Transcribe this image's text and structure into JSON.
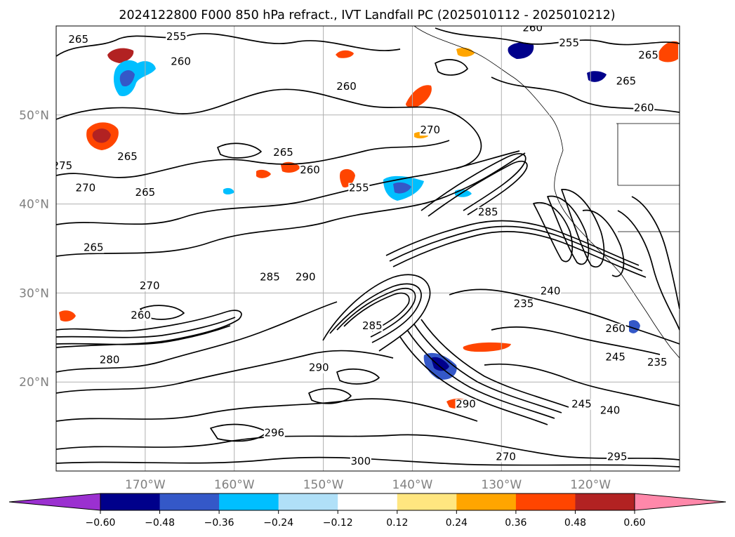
{
  "title": "2024122800 F000 850 hPa refract., IVT Landfall PC (2025010112 - 2025010212)",
  "map": {
    "lon_range": [
      -180,
      -110
    ],
    "lat_range": [
      10,
      60
    ],
    "lat_ticks": [
      {
        "lat": 50,
        "label": "50°N"
      },
      {
        "lat": 40,
        "label": "40°N"
      },
      {
        "lat": 30,
        "label": "30°N"
      },
      {
        "lat": 20,
        "label": "20°N"
      }
    ],
    "lon_ticks": [
      {
        "lon": -170,
        "label": "170°W"
      },
      {
        "lon": -160,
        "label": "160°W"
      },
      {
        "lon": -150,
        "label": "150°W"
      },
      {
        "lon": -140,
        "label": "140°W"
      },
      {
        "lon": -130,
        "label": "130°W"
      },
      {
        "lon": -120,
        "label": "120°W"
      }
    ],
    "gridlines": true
  },
  "colorbar": {
    "levels": [
      "-0.60",
      "-0.48",
      "-0.36",
      "-0.24",
      "-0.12",
      "0.12",
      "0.24",
      "0.36",
      "0.48",
      "0.60"
    ],
    "colors": [
      "#9b30d0",
      "#00008b",
      "#3458c8",
      "#00bfff",
      "#b0e0f8",
      "#ffffff",
      "#ffe680",
      "#ffa500",
      "#ff4500",
      "#b22222",
      "#ff88aa"
    ],
    "extend": "both"
  },
  "contour_labels": [
    {
      "text": "265",
      "lon": -177.5,
      "lat": 58.2
    },
    {
      "text": "255",
      "lon": -166.5,
      "lat": 58.5
    },
    {
      "text": "260",
      "lon": -166,
      "lat": 55.7
    },
    {
      "text": "260",
      "lon": -147.4,
      "lat": 52.9
    },
    {
      "text": "265",
      "lon": -172,
      "lat": 45
    },
    {
      "text": "265",
      "lon": -170,
      "lat": 41
    },
    {
      "text": "270",
      "lon": -176.7,
      "lat": 41.5
    },
    {
      "text": "275",
      "lon": -179.3,
      "lat": 44
    },
    {
      "text": "265",
      "lon": -154.5,
      "lat": 45.5
    },
    {
      "text": "260",
      "lon": -151.5,
      "lat": 43.5
    },
    {
      "text": "270",
      "lon": -138,
      "lat": 48
    },
    {
      "text": "255",
      "lon": -146,
      "lat": 41.5
    },
    {
      "text": "260",
      "lon": -126.5,
      "lat": 59.5
    },
    {
      "text": "255",
      "lon": -122.4,
      "lat": 57.8
    },
    {
      "text": "265",
      "lon": -113.5,
      "lat": 56.4
    },
    {
      "text": "265",
      "lon": -116,
      "lat": 53.5
    },
    {
      "text": "260",
      "lon": -114,
      "lat": 50.5
    },
    {
      "text": "285",
      "lon": -131.5,
      "lat": 38.8
    },
    {
      "text": "265",
      "lon": -175.8,
      "lat": 34.8
    },
    {
      "text": "270",
      "lon": -169.5,
      "lat": 30.5
    },
    {
      "text": "260",
      "lon": -170.5,
      "lat": 27.2
    },
    {
      "text": "280",
      "lon": -174,
      "lat": 22.2
    },
    {
      "text": "285",
      "lon": -156,
      "lat": 31.5
    },
    {
      "text": "290",
      "lon": -152,
      "lat": 31.5
    },
    {
      "text": "285",
      "lon": -144.5,
      "lat": 26
    },
    {
      "text": "290",
      "lon": -150.5,
      "lat": 21.3
    },
    {
      "text": "240",
      "lon": -124.5,
      "lat": 29.9
    },
    {
      "text": "235",
      "lon": -127.5,
      "lat": 28.5
    },
    {
      "text": "260",
      "lon": -117.2,
      "lat": 25.7
    },
    {
      "text": "245",
      "lon": -117.2,
      "lat": 22.5
    },
    {
      "text": "235",
      "lon": -112.5,
      "lat": 21.9
    },
    {
      "text": "245",
      "lon": -121,
      "lat": 17.2
    },
    {
      "text": "240",
      "lon": -117.8,
      "lat": 16.5
    },
    {
      "text": "290",
      "lon": -134,
      "lat": 17.2
    },
    {
      "text": "270",
      "lon": -129.5,
      "lat": 11.3
    },
    {
      "text": "295",
      "lon": -117,
      "lat": 11.3
    },
    {
      "text": "296",
      "lon": -155.5,
      "lat": 14
    },
    {
      "text": "300",
      "lon": -145.8,
      "lat": 10.8
    }
  ]
}
